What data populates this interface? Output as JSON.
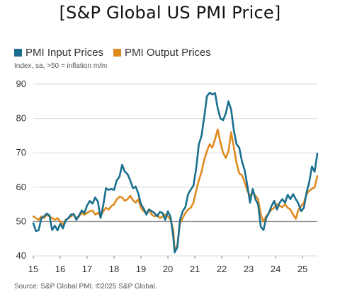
{
  "page_title": "[S&P Global US PMI Price]",
  "colors": {
    "input": "#1a6f8f",
    "output": "#e08a1e",
    "grid": "#d9d9d9",
    "baseline": "#888888"
  },
  "chart_data": {
    "type": "line",
    "title": "",
    "subtitle": "Index, sa, >50 = inflation m/m",
    "xlabel": "",
    "ylabel": "",
    "ylim": [
      40,
      90
    ],
    "yticks": [
      40,
      50,
      60,
      70,
      80,
      90
    ],
    "xlim": [
      2015.0,
      2025.55
    ],
    "xticks": [
      {
        "value": 2015,
        "label": "15"
      },
      {
        "value": 2016,
        "label": "16"
      },
      {
        "value": 2017,
        "label": "17"
      },
      {
        "value": 2018,
        "label": "18"
      },
      {
        "value": 2019,
        "label": "19"
      },
      {
        "value": 2020,
        "label": "20"
      },
      {
        "value": 2021,
        "label": "21"
      },
      {
        "value": 2022,
        "label": "22"
      },
      {
        "value": 2023,
        "label": "23"
      },
      {
        "value": 2024,
        "label": "24"
      },
      {
        "value": 2025,
        "label": "25"
      }
    ],
    "reference_line": 50,
    "grid": true,
    "legend_position": "top-left",
    "source": "Source: S&P Global PMI. ©2025 S&P Global.",
    "series": [
      {
        "name": "PMI Input Prices",
        "color": "#1a6f8f",
        "points": [
          [
            2015.0,
            49.5
          ],
          [
            2015.1,
            47.2
          ],
          [
            2015.2,
            47.5
          ],
          [
            2015.3,
            51.0
          ],
          [
            2015.4,
            51.5
          ],
          [
            2015.5,
            52.3
          ],
          [
            2015.6,
            51.8
          ],
          [
            2015.7,
            47.5
          ],
          [
            2015.8,
            48.8
          ],
          [
            2015.9,
            47.4
          ],
          [
            2016.0,
            49.3
          ],
          [
            2016.1,
            48.0
          ],
          [
            2016.2,
            50.3
          ],
          [
            2016.3,
            51.0
          ],
          [
            2016.4,
            52.0
          ],
          [
            2016.5,
            52.2
          ],
          [
            2016.6,
            50.5
          ],
          [
            2016.7,
            51.8
          ],
          [
            2016.8,
            53.2
          ],
          [
            2016.9,
            52.5
          ],
          [
            2017.0,
            54.7
          ],
          [
            2017.1,
            56.0
          ],
          [
            2017.2,
            55.2
          ],
          [
            2017.3,
            57.0
          ],
          [
            2017.4,
            55.8
          ],
          [
            2017.5,
            51.0
          ],
          [
            2017.6,
            54.8
          ],
          [
            2017.7,
            59.7
          ],
          [
            2017.8,
            59.2
          ],
          [
            2017.9,
            59.5
          ],
          [
            2018.0,
            59.2
          ],
          [
            2018.1,
            62.0
          ],
          [
            2018.2,
            63.0
          ],
          [
            2018.3,
            66.5
          ],
          [
            2018.4,
            64.5
          ],
          [
            2018.5,
            63.8
          ],
          [
            2018.6,
            62.0
          ],
          [
            2018.7,
            59.7
          ],
          [
            2018.8,
            60.2
          ],
          [
            2018.9,
            58.2
          ],
          [
            2019.0,
            55.0
          ],
          [
            2019.1,
            53.8
          ],
          [
            2019.2,
            52.0
          ],
          [
            2019.3,
            53.5
          ],
          [
            2019.4,
            53.0
          ],
          [
            2019.5,
            52.5
          ],
          [
            2019.6,
            51.5
          ],
          [
            2019.7,
            52.8
          ],
          [
            2019.8,
            52.5
          ],
          [
            2019.9,
            50.5
          ],
          [
            2020.0,
            53.0
          ],
          [
            2020.1,
            51.3
          ],
          [
            2020.2,
            45.5
          ],
          [
            2020.25,
            41.0
          ],
          [
            2020.35,
            42.5
          ],
          [
            2020.45,
            50.5
          ],
          [
            2020.55,
            53.0
          ],
          [
            2020.65,
            54.2
          ],
          [
            2020.75,
            58.0
          ],
          [
            2020.85,
            59.3
          ],
          [
            2020.95,
            60.5
          ],
          [
            2021.05,
            65.5
          ],
          [
            2021.15,
            72.5
          ],
          [
            2021.25,
            75.0
          ],
          [
            2021.35,
            80.5
          ],
          [
            2021.45,
            86.5
          ],
          [
            2021.55,
            87.5
          ],
          [
            2021.65,
            87.0
          ],
          [
            2021.75,
            87.4
          ],
          [
            2021.85,
            83.0
          ],
          [
            2021.95,
            80.0
          ],
          [
            2022.05,
            79.5
          ],
          [
            2022.15,
            81.5
          ],
          [
            2022.25,
            85.0
          ],
          [
            2022.35,
            82.5
          ],
          [
            2022.45,
            76.5
          ],
          [
            2022.55,
            72.5
          ],
          [
            2022.65,
            71.5
          ],
          [
            2022.75,
            67.5
          ],
          [
            2022.85,
            65.0
          ],
          [
            2022.95,
            60.5
          ],
          [
            2023.05,
            55.5
          ],
          [
            2023.15,
            59.5
          ],
          [
            2023.25,
            56.5
          ],
          [
            2023.35,
            55.0
          ],
          [
            2023.45,
            48.5
          ],
          [
            2023.55,
            47.5
          ],
          [
            2023.65,
            51.0
          ],
          [
            2023.75,
            52.5
          ],
          [
            2023.85,
            54.5
          ],
          [
            2023.95,
            56.0
          ],
          [
            2024.05,
            53.5
          ],
          [
            2024.15,
            55.5
          ],
          [
            2024.25,
            56.5
          ],
          [
            2024.35,
            55.5
          ],
          [
            2024.45,
            57.8
          ],
          [
            2024.55,
            56.5
          ],
          [
            2024.65,
            58.0
          ],
          [
            2024.75,
            56.5
          ],
          [
            2024.85,
            55.2
          ],
          [
            2024.95,
            53.0
          ],
          [
            2025.05,
            54.0
          ],
          [
            2025.15,
            58.5
          ],
          [
            2025.25,
            61.5
          ],
          [
            2025.35,
            66.0
          ],
          [
            2025.45,
            64.5
          ],
          [
            2025.55,
            69.8
          ]
        ]
      },
      {
        "name": "PMI Output Prices",
        "color": "#e08a1e",
        "points": [
          [
            2015.0,
            51.5
          ],
          [
            2015.1,
            51.0
          ],
          [
            2015.2,
            50.5
          ],
          [
            2015.3,
            51.5
          ],
          [
            2015.4,
            51.0
          ],
          [
            2015.5,
            52.0
          ],
          [
            2015.6,
            51.5
          ],
          [
            2015.7,
            51.0
          ],
          [
            2015.8,
            50.5
          ],
          [
            2015.9,
            51.0
          ],
          [
            2016.0,
            50.0
          ],
          [
            2016.1,
            49.0
          ],
          [
            2016.2,
            50.5
          ],
          [
            2016.3,
            51.0
          ],
          [
            2016.4,
            51.5
          ],
          [
            2016.5,
            52.0
          ],
          [
            2016.6,
            51.0
          ],
          [
            2016.7,
            51.5
          ],
          [
            2016.8,
            52.5
          ],
          [
            2016.9,
            52.0
          ],
          [
            2017.0,
            52.5
          ],
          [
            2017.1,
            53.0
          ],
          [
            2017.2,
            53.2
          ],
          [
            2017.3,
            52.0
          ],
          [
            2017.4,
            52.5
          ],
          [
            2017.5,
            51.5
          ],
          [
            2017.6,
            53.0
          ],
          [
            2017.7,
            54.0
          ],
          [
            2017.8,
            53.5
          ],
          [
            2017.9,
            54.5
          ],
          [
            2018.0,
            55.0
          ],
          [
            2018.1,
            56.5
          ],
          [
            2018.2,
            57.2
          ],
          [
            2018.3,
            57.0
          ],
          [
            2018.4,
            56.0
          ],
          [
            2018.5,
            56.5
          ],
          [
            2018.6,
            57.5
          ],
          [
            2018.7,
            56.2
          ],
          [
            2018.8,
            55.5
          ],
          [
            2018.9,
            56.5
          ],
          [
            2019.0,
            54.0
          ],
          [
            2019.1,
            53.0
          ],
          [
            2019.2,
            52.5
          ],
          [
            2019.3,
            53.5
          ],
          [
            2019.4,
            52.0
          ],
          [
            2019.5,
            51.5
          ],
          [
            2019.6,
            52.0
          ],
          [
            2019.7,
            51.0
          ],
          [
            2019.8,
            51.5
          ],
          [
            2019.9,
            52.0
          ],
          [
            2020.0,
            51.5
          ],
          [
            2020.1,
            50.5
          ],
          [
            2020.2,
            47.5
          ],
          [
            2020.25,
            41.5
          ],
          [
            2020.35,
            43.0
          ],
          [
            2020.45,
            49.5
          ],
          [
            2020.55,
            51.0
          ],
          [
            2020.65,
            52.5
          ],
          [
            2020.75,
            53.5
          ],
          [
            2020.85,
            54.0
          ],
          [
            2020.95,
            55.5
          ],
          [
            2021.05,
            59.0
          ],
          [
            2021.15,
            62.0
          ],
          [
            2021.25,
            64.5
          ],
          [
            2021.35,
            68.0
          ],
          [
            2021.45,
            70.5
          ],
          [
            2021.55,
            72.5
          ],
          [
            2021.65,
            71.5
          ],
          [
            2021.75,
            74.0
          ],
          [
            2021.85,
            76.8
          ],
          [
            2021.95,
            73.0
          ],
          [
            2022.05,
            70.0
          ],
          [
            2022.15,
            68.5
          ],
          [
            2022.25,
            70.5
          ],
          [
            2022.35,
            76.0
          ],
          [
            2022.45,
            71.5
          ],
          [
            2022.55,
            67.0
          ],
          [
            2022.65,
            64.0
          ],
          [
            2022.75,
            63.5
          ],
          [
            2022.85,
            61.5
          ],
          [
            2022.95,
            59.0
          ],
          [
            2023.05,
            57.5
          ],
          [
            2023.15,
            58.5
          ],
          [
            2023.25,
            57.5
          ],
          [
            2023.35,
            56.5
          ],
          [
            2023.45,
            52.0
          ],
          [
            2023.55,
            50.0
          ],
          [
            2023.65,
            51.5
          ],
          [
            2023.75,
            52.5
          ],
          [
            2023.85,
            53.5
          ],
          [
            2023.95,
            54.0
          ],
          [
            2024.05,
            55.0
          ],
          [
            2024.15,
            54.5
          ],
          [
            2024.25,
            54.2
          ],
          [
            2024.35,
            55.0
          ],
          [
            2024.45,
            54.0
          ],
          [
            2024.55,
            53.5
          ],
          [
            2024.65,
            52.0
          ],
          [
            2024.75,
            50.8
          ],
          [
            2024.85,
            53.5
          ],
          [
            2024.95,
            54.5
          ],
          [
            2025.05,
            55.5
          ],
          [
            2025.15,
            58.0
          ],
          [
            2025.25,
            59.0
          ],
          [
            2025.35,
            59.5
          ],
          [
            2025.45,
            60.0
          ],
          [
            2025.55,
            63.2
          ]
        ]
      }
    ]
  }
}
